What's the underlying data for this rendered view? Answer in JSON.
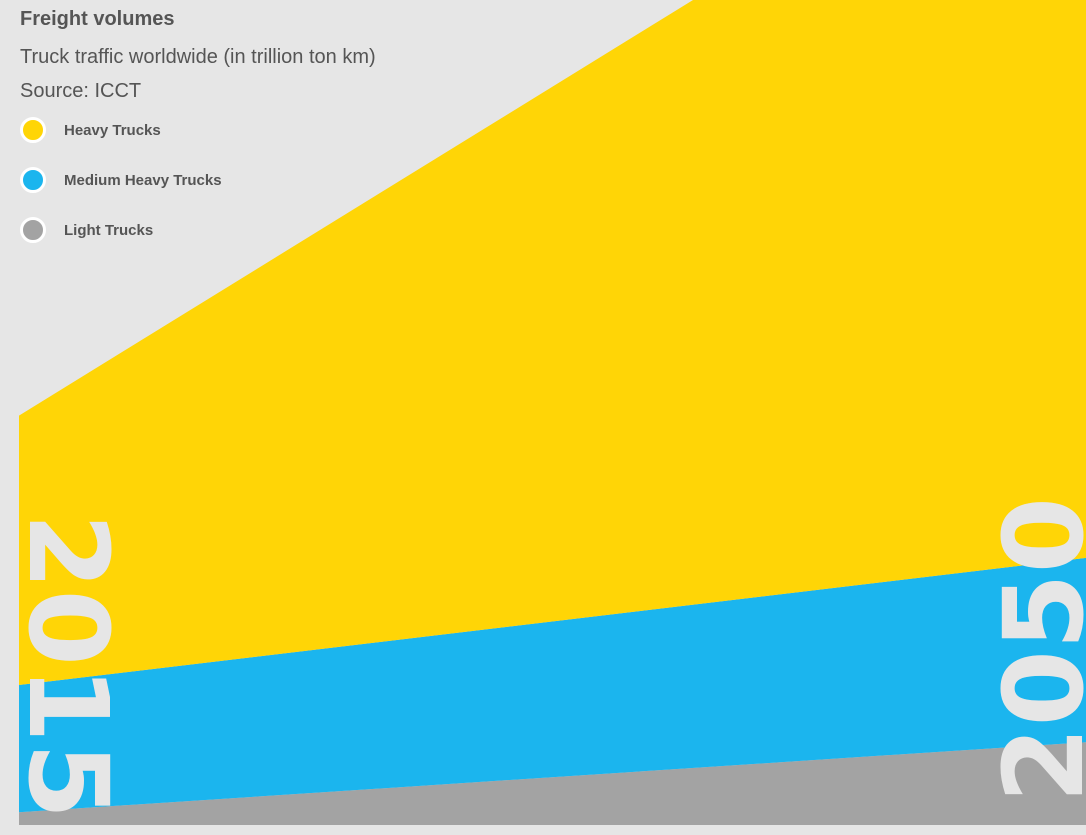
{
  "header": {
    "title": "Freight volumes",
    "subtitle": "Truck traffic worldwide (in trillion ton km)",
    "source": "Source: ICCT"
  },
  "colors": {
    "background": "#e6e6e6",
    "heavy": "#ffd506",
    "medium": "#1bb5ee",
    "light": "#a3a3a3",
    "text": "#555555"
  },
  "chart_data": {
    "type": "area",
    "stacked": true,
    "x": [
      "2015",
      "2050"
    ],
    "series": [
      {
        "name": "Light Trucks",
        "values": [
          1.1,
          7.1
        ],
        "color": "#a3a3a3"
      },
      {
        "name": "Medium Heavy Trucks",
        "values": [
          10.9,
          15.8
        ],
        "color": "#1bb5ee"
      },
      {
        "name": "Heavy Trucks",
        "values": [
          23.1,
          68.6
        ],
        "color": "#ffd506"
      }
    ],
    "title": "Freight volumes",
    "subtitle": "Truck traffic worldwide (in trillion ton km)",
    "source": "Source: ICCT",
    "legend": [
      {
        "label": "Heavy Trucks",
        "color": "#ffd506"
      },
      {
        "label": "Medium Heavy Trucks",
        "color": "#1bb5ee"
      },
      {
        "label": "Light Trucks",
        "color": "#a3a3a3"
      }
    ],
    "year_labels": [
      "2015",
      "2050"
    ],
    "legend_position": "top-left",
    "grid": false
  }
}
